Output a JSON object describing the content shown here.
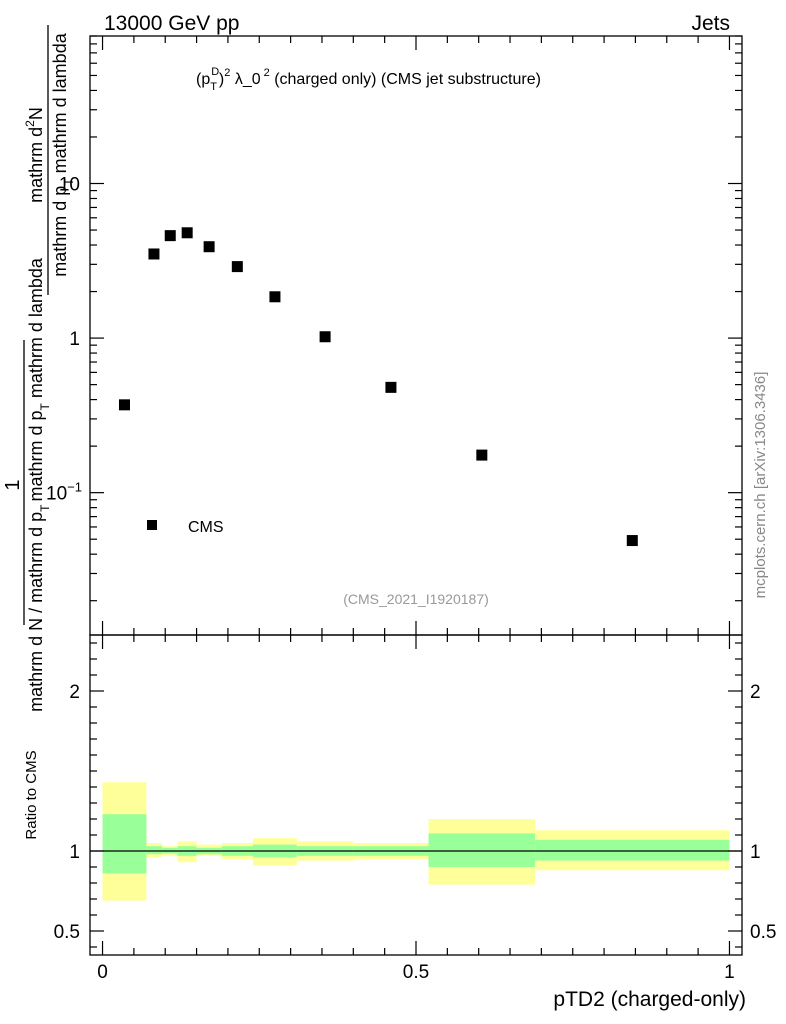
{
  "header": {
    "left": "13000 GeV pp",
    "right": "Jets"
  },
  "watermark": "mcplots.cern.ch [arXiv:1306.3436]",
  "colors": {
    "marker": "#000000",
    "band_outer": "#ffff99",
    "band_inner": "#99ff99",
    "ref_line": "#000000",
    "frame": "#000000"
  },
  "chart_data": [
    {
      "type": "scatter",
      "title": "(p_T^D)^2 λ_0^2 (charged only) (CMS jet substructure)",
      "title_parts": {
        "a": "(p",
        "sub": "T",
        "sup_d": "D",
        "b": ")",
        "sup2": "2",
        "c": " λ_0",
        "sup3": "2",
        "d": " (charged only) (CMS jet substructure)"
      },
      "analysis_id": "(CMS_2021_I1920187)",
      "ylabel": "1 / (mathrm d N / mathrm d p_T mathrm d p_T mathrm d lambda) · mathrm d^2N / mathrm d p_T mathrm d lambda",
      "ylabel_parts": {
        "num_a": "mathrm d",
        "num_sup": "2",
        "num_b": "N",
        "num_den_a": "mathrm d p",
        "num_den_sub": "T",
        "num_den_b": " mathrm d lambda",
        "big_one": "1",
        "den_a": "mathrm d N / mathrm d p",
        "den_sub": "T",
        "den_b": "mathrm d p",
        "den_sub2": "T",
        "den_c": " mathrm d lambda"
      },
      "yscale": "log",
      "ylim": [
        0.012,
        90
      ],
      "xlim": [
        -0.02,
        1.02
      ],
      "yticks": [
        {
          "v": 10,
          "label": "10"
        },
        {
          "v": 1,
          "label": "1"
        },
        {
          "v": 0.1,
          "label": "10",
          "sup": "−1"
        }
      ],
      "legend": {
        "label": "CMS",
        "position": "bottom-left"
      },
      "series": [
        {
          "name": "CMS",
          "x": [
            0.035,
            0.082,
            0.108,
            0.135,
            0.17,
            0.215,
            0.275,
            0.355,
            0.46,
            0.605,
            0.845
          ],
          "y": [
            0.37,
            3.5,
            4.6,
            4.8,
            3.9,
            2.9,
            1.85,
            1.02,
            0.48,
            0.175,
            0.049
          ]
        }
      ]
    },
    {
      "type": "area",
      "ylabel": "Ratio to CMS",
      "xlabel": "pTD2 (charged-only)",
      "xlim": [
        -0.02,
        1.02
      ],
      "ylim": [
        0.35,
        2.35
      ],
      "xticks": [
        {
          "v": 0,
          "label": "0"
        },
        {
          "v": 0.5,
          "label": "0.5"
        },
        {
          "v": 1,
          "label": "1"
        }
      ],
      "yticks": [
        {
          "v": 0.5,
          "label": "0.5"
        },
        {
          "v": 1,
          "label": "1"
        },
        {
          "v": 2,
          "label": "2"
        }
      ],
      "reference": 1,
      "bands": [
        {
          "x0": 0.0,
          "x1": 0.07,
          "outer": [
            0.69,
            1.43
          ],
          "inner": [
            0.86,
            1.23
          ]
        },
        {
          "x0": 0.07,
          "x1": 0.095,
          "outer": [
            0.96,
            1.05
          ],
          "inner": [
            0.98,
            1.03
          ]
        },
        {
          "x0": 0.095,
          "x1": 0.12,
          "outer": [
            0.97,
            1.03
          ],
          "inner": [
            0.985,
            1.02
          ]
        },
        {
          "x0": 0.12,
          "x1": 0.15,
          "outer": [
            0.93,
            1.06
          ],
          "inner": [
            0.97,
            1.03
          ]
        },
        {
          "x0": 0.15,
          "x1": 0.19,
          "outer": [
            0.97,
            1.04
          ],
          "inner": [
            0.98,
            1.02
          ]
        },
        {
          "x0": 0.19,
          "x1": 0.24,
          "outer": [
            0.95,
            1.05
          ],
          "inner": [
            0.97,
            1.03
          ]
        },
        {
          "x0": 0.24,
          "x1": 0.31,
          "outer": [
            0.91,
            1.08
          ],
          "inner": [
            0.96,
            1.04
          ]
        },
        {
          "x0": 0.31,
          "x1": 0.4,
          "outer": [
            0.94,
            1.06
          ],
          "inner": [
            0.97,
            1.03
          ]
        },
        {
          "x0": 0.4,
          "x1": 0.52,
          "outer": [
            0.95,
            1.05
          ],
          "inner": [
            0.97,
            1.03
          ]
        },
        {
          "x0": 0.52,
          "x1": 0.69,
          "outer": [
            0.79,
            1.2
          ],
          "inner": [
            0.9,
            1.11
          ]
        },
        {
          "x0": 0.69,
          "x1": 1.0,
          "outer": [
            0.88,
            1.13
          ],
          "inner": [
            0.94,
            1.07
          ]
        }
      ]
    }
  ]
}
